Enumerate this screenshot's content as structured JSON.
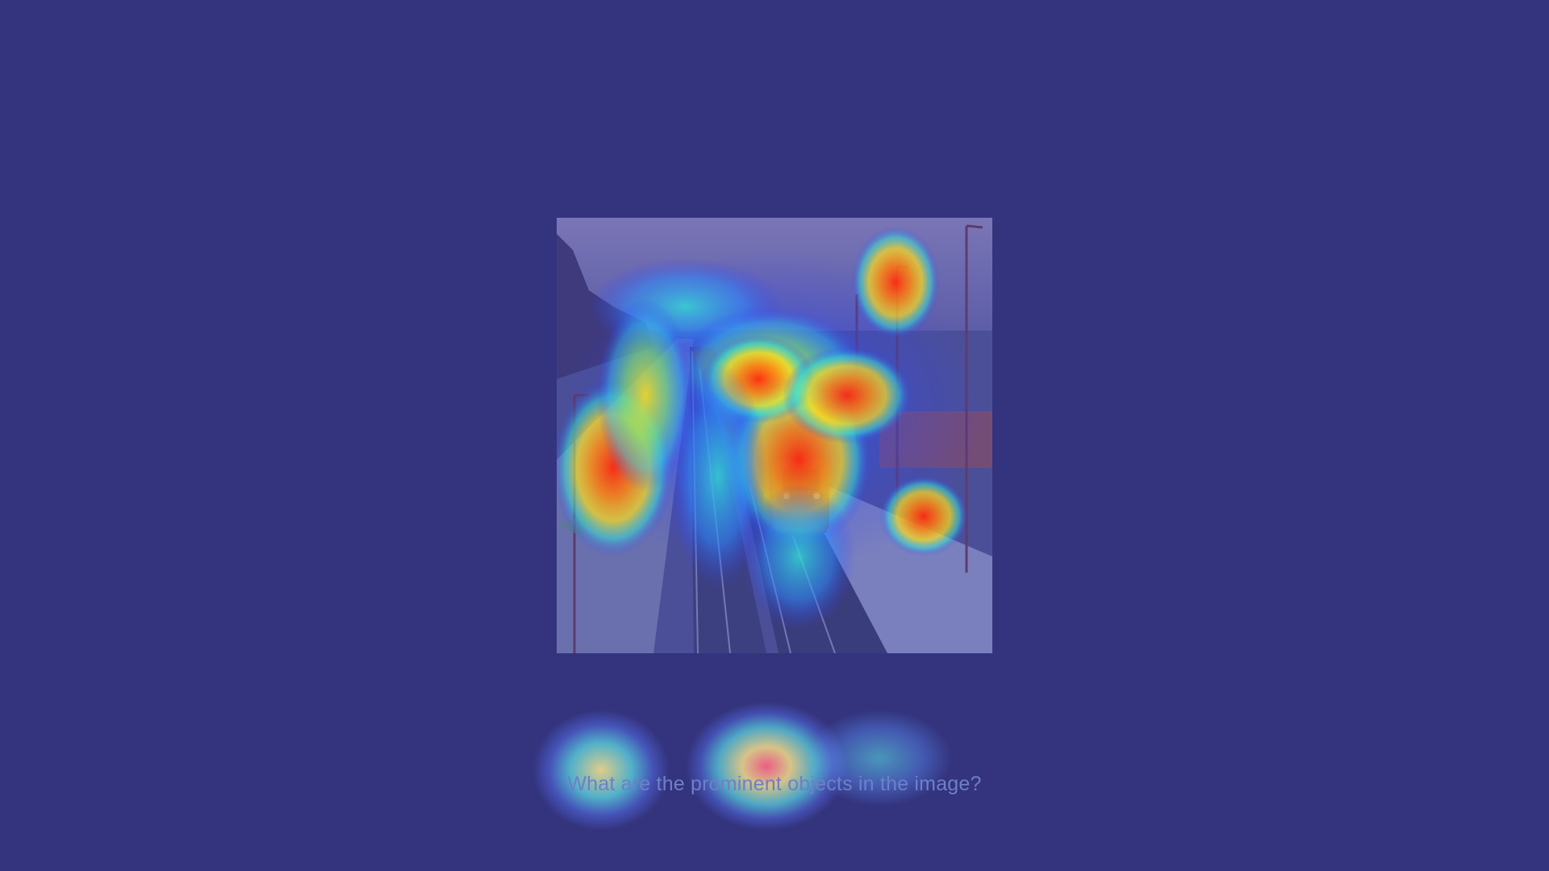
{
  "figure": {
    "background_color": "#34337d",
    "photo_description_icon": "railway-station-train-photo",
    "question": "What are the prominent objects in the image?",
    "heatmap_colors": {
      "low": "#2f3cff",
      "mid": "#34e0d8",
      "high": "#ffe21a",
      "peak": "#ff2a10"
    }
  }
}
